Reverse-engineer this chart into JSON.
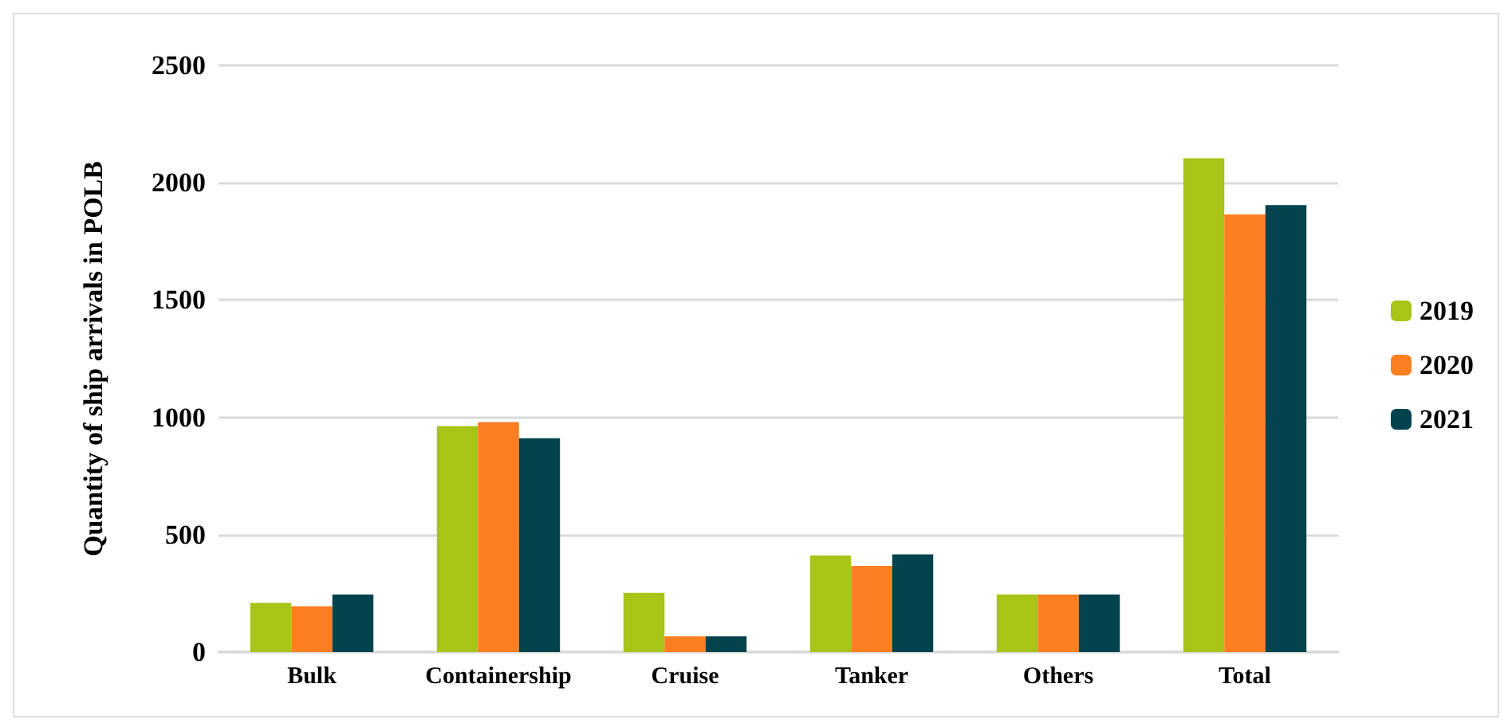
{
  "chart_data": {
    "type": "bar",
    "ylabel": "Quantity of ship arrivals in POLB",
    "categories": [
      "Bulk",
      "Containership",
      "Cruise",
      "Tanker",
      "Others",
      "Total"
    ],
    "series": [
      {
        "name": "2019",
        "color": "#a8c416",
        "values": [
          210,
          963,
          252,
          412,
          245,
          2104
        ]
      },
      {
        "name": "2020",
        "color": "#fd7f21",
        "values": [
          195,
          980,
          67,
          367,
          245,
          1865
        ]
      },
      {
        "name": "2021",
        "color": "#03434e",
        "values": [
          245,
          911,
          67,
          416,
          245,
          1905
        ]
      }
    ],
    "ylim": [
      0,
      2500
    ],
    "yticks": [
      0,
      500,
      1000,
      1500,
      2000,
      2500
    ],
    "grid": true,
    "legend": "right"
  }
}
